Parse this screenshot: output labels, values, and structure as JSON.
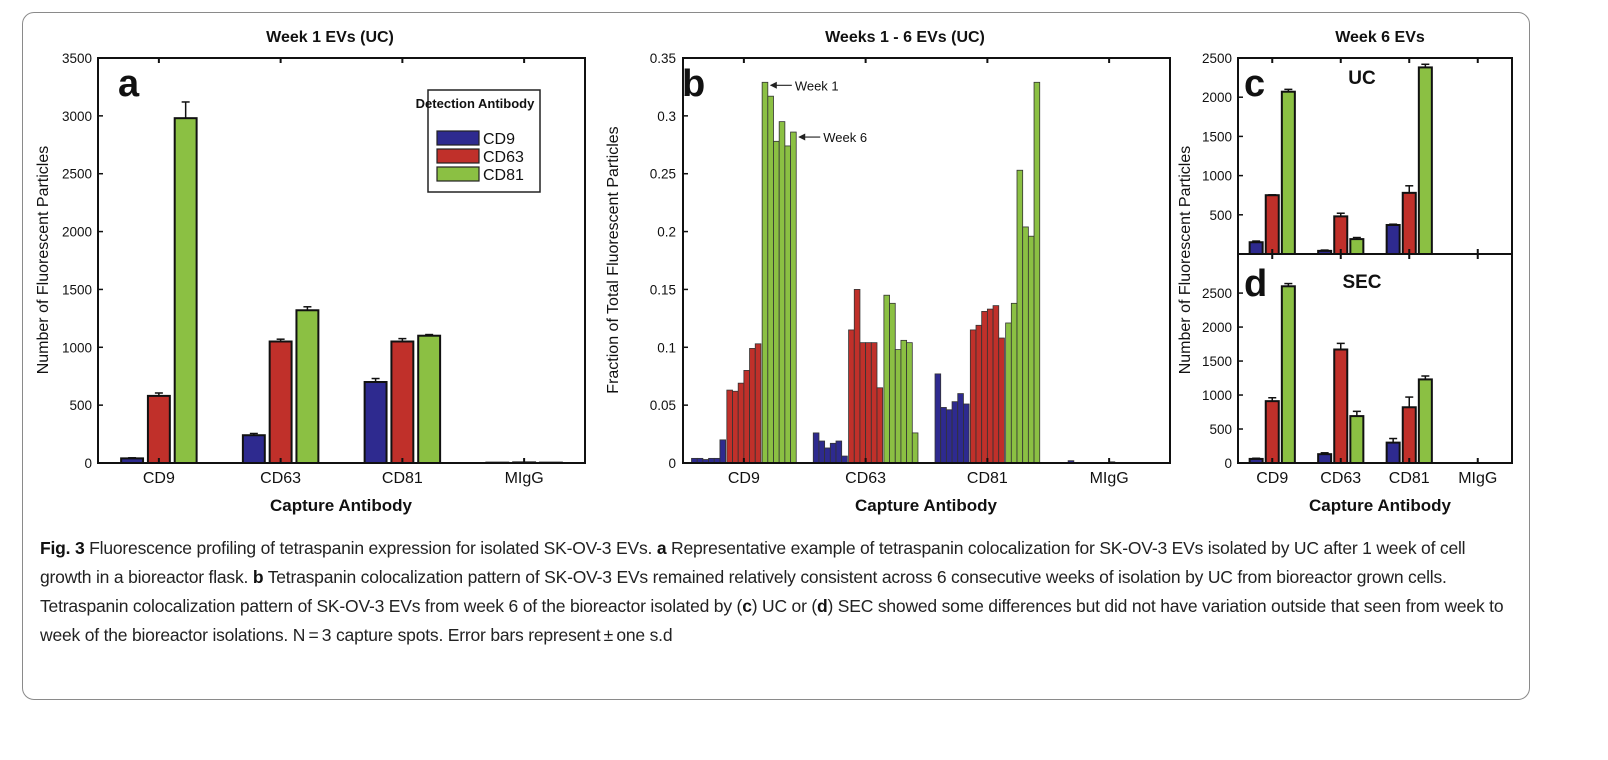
{
  "colors": {
    "CD9": "#2e2a8f",
    "CD63": "#c0302a",
    "CD81": "#8bc043"
  },
  "chart_data": [
    {
      "panel": "a",
      "type": "bar",
      "title": "Week 1 EVs (UC)",
      "xlabel": "Capture Antibody",
      "ylabel": "Number of Fluorescent Particles",
      "ylim": [
        0,
        3500
      ],
      "yticks": [
        0,
        500,
        1000,
        1500,
        2000,
        2500,
        3000,
        3500
      ],
      "categories": [
        "CD9",
        "CD63",
        "CD81",
        "MIgG"
      ],
      "legend": {
        "title": "Detection Antibody",
        "placement": "top-right"
      },
      "series": [
        {
          "name": "CD9",
          "values": [
            40,
            240,
            700,
            3
          ],
          "errors": [
            5,
            15,
            30,
            0
          ]
        },
        {
          "name": "CD63",
          "values": [
            580,
            1050,
            1050,
            5
          ],
          "errors": [
            25,
            20,
            25,
            0
          ]
        },
        {
          "name": "CD81",
          "values": [
            2980,
            1320,
            1100,
            3
          ],
          "errors": [
            140,
            30,
            10,
            0
          ]
        }
      ]
    },
    {
      "panel": "b",
      "type": "bar",
      "title": "Weeks 1 - 6 EVs (UC)",
      "xlabel": "Capture Antibody",
      "ylabel": "Fraction of Total Fluorescent Particles",
      "ylim": [
        0,
        0.35
      ],
      "yticks": [
        "0",
        "0.05",
        "0.1",
        "0.15",
        "0.2",
        "0.25",
        "0.3",
        "0.35"
      ],
      "categories": [
        "CD9",
        "CD63",
        "CD81",
        "MIgG"
      ],
      "annotations": [
        "Week 1",
        "Week 6"
      ],
      "series": [
        {
          "name": "CD9",
          "values": [
            [
              0.004,
              0.004,
              0.003,
              0.004,
              0.004,
              0.02
            ],
            [
              0.026,
              0.019,
              0.013,
              0.017,
              0.019,
              0.006
            ],
            [
              0.077,
              0.048,
              0.046,
              0.053,
              0.06,
              0.051
            ],
            [
              0,
              0,
              0.002,
              0,
              0,
              0
            ]
          ]
        },
        {
          "name": "CD63",
          "values": [
            [
              0.063,
              0.062,
              0.069,
              0.08,
              0.099,
              0.103
            ],
            [
              0.115,
              0.15,
              0.104,
              0.104,
              0.104,
              0.065
            ],
            [
              0.115,
              0.119,
              0.131,
              0.133,
              0.136,
              0.108
            ],
            [
              0,
              0,
              0,
              0.001,
              0,
              0
            ]
          ]
        },
        {
          "name": "CD81",
          "values": [
            [
              0.329,
              0.317,
              0.278,
              0.295,
              0.274,
              0.286
            ],
            [
              0.145,
              0.138,
              0.098,
              0.106,
              0.104,
              0.026
            ],
            [
              0.121,
              0.138,
              0.253,
              0.204,
              0.196,
              0.329
            ],
            [
              0,
              0,
              0,
              0,
              0,
              0
            ]
          ]
        }
      ]
    },
    {
      "panel": "c",
      "type": "bar",
      "title": "Week 6 EVs",
      "subtitle": "UC",
      "xlabel": "Capture Antibody",
      "ylabel": "Number of Fluorescent Particles",
      "ylim": [
        0,
        2500
      ],
      "yticks": [
        500,
        1000,
        1500,
        2000,
        2500
      ],
      "categories": [
        "CD9",
        "CD63",
        "CD81",
        "MIgG"
      ],
      "series": [
        {
          "name": "CD9",
          "values": [
            150,
            40,
            370,
            0
          ],
          "errors": [
            15,
            10,
            10,
            0
          ]
        },
        {
          "name": "CD63",
          "values": [
            750,
            480,
            780,
            0
          ],
          "errors": [
            5,
            40,
            90,
            0
          ]
        },
        {
          "name": "CD81",
          "values": [
            2070,
            190,
            2380,
            0
          ],
          "errors": [
            30,
            20,
            40,
            0
          ]
        }
      ]
    },
    {
      "panel": "d",
      "type": "bar",
      "subtitle": "SEC",
      "xlabel": "Capture Antibody",
      "ylabel": "Number of Fluorescent Particles",
      "ylim": [
        0,
        3075
      ],
      "yticks": [
        0,
        500,
        1000,
        1500,
        2000,
        2500
      ],
      "categories": [
        "CD9",
        "CD63",
        "CD81",
        "MIgG"
      ],
      "series": [
        {
          "name": "CD9",
          "values": [
            60,
            130,
            300,
            0
          ],
          "errors": [
            10,
            20,
            60,
            0
          ]
        },
        {
          "name": "CD63",
          "values": [
            910,
            1670,
            820,
            0
          ],
          "errors": [
            50,
            90,
            150,
            0
          ]
        },
        {
          "name": "CD81",
          "values": [
            2600,
            690,
            1230,
            0
          ],
          "errors": [
            40,
            70,
            50,
            0
          ]
        }
      ]
    }
  ],
  "caption": [
    {
      "text": "Fig. 3",
      "bold": true
    },
    {
      "text": "  Fluorescence profiling of tetraspanin expression for isolated SK-OV-3 EVs. ",
      "bold": false
    },
    {
      "text": "a",
      "bold": true
    },
    {
      "text": " Representative example of tetraspanin colocalization for SK-OV-3 EVs isolated by UC after 1 week of cell growth in a bioreactor flask. ",
      "bold": false
    },
    {
      "text": "b",
      "bold": true
    },
    {
      "text": " Tetraspanin colocalization pattern of SK-OV-3 EVs remained relatively consistent across 6 consecutive weeks of isolation by UC from bioreactor grown cells. Tetraspanin colocalization pattern of SK-OV-3 EVs from week 6 of the bioreactor isolated by (",
      "bold": false
    },
    {
      "text": "c",
      "bold": true
    },
    {
      "text": ") UC or (",
      "bold": false
    },
    {
      "text": "d",
      "bold": true
    },
    {
      "text": ") SEC showed some differences but did not have variation outside that seen from week to week of the bioreactor isolations. N = 3 capture spots. Error bars represent ± one s.d",
      "bold": false
    }
  ]
}
